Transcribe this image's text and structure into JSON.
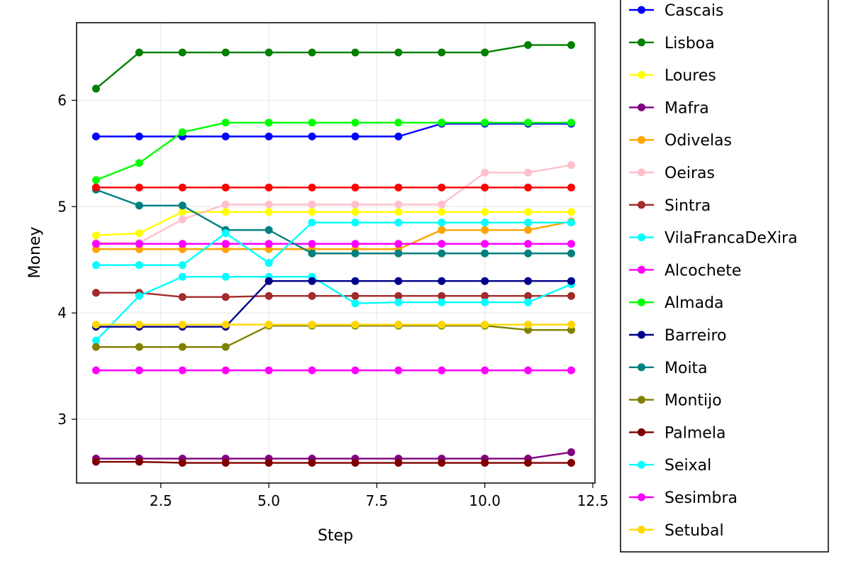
{
  "chart_data": {
    "type": "line",
    "title": "",
    "xlabel": "Step",
    "ylabel": "Money",
    "xlim": [
      0.55,
      12.55
    ],
    "ylim": [
      2.4,
      6.73
    ],
    "xticks": [
      2.5,
      5.0,
      7.5,
      10.0,
      12.5
    ],
    "xtick_labels": [
      "2.5",
      "5.0",
      "7.5",
      "10.0",
      "12.5"
    ],
    "yticks": [
      3,
      4,
      5,
      6
    ],
    "ytick_labels": [
      "3",
      "4",
      "5",
      "6"
    ],
    "grid": true,
    "legend_position": "outside-right",
    "x": [
      1,
      2,
      3,
      4,
      5,
      6,
      7,
      8,
      9,
      10,
      11,
      12
    ],
    "series": [
      {
        "name": "Cascais",
        "color": "#0000ff",
        "values": [
          5.66,
          5.66,
          5.66,
          5.66,
          5.66,
          5.66,
          5.66,
          5.66,
          5.78,
          5.78,
          5.78,
          5.78
        ]
      },
      {
        "name": "Lisboa",
        "color": "#008000",
        "values": [
          6.11,
          6.45,
          6.45,
          6.45,
          6.45,
          6.45,
          6.45,
          6.45,
          6.45,
          6.45,
          6.52,
          6.52
        ]
      },
      {
        "name": "Loures",
        "color": "#ffff00",
        "values": [
          4.73,
          4.75,
          4.95,
          4.95,
          4.95,
          4.95,
          4.95,
          4.95,
          4.95,
          4.95,
          4.95,
          4.95
        ]
      },
      {
        "name": "Mafra",
        "color": "#800080",
        "values": [
          2.63,
          2.63,
          2.63,
          2.63,
          2.63,
          2.63,
          2.63,
          2.63,
          2.63,
          2.63,
          2.63,
          2.69
        ]
      },
      {
        "name": "Odivelas",
        "color": "#ffa500",
        "values": [
          4.6,
          4.6,
          4.6,
          4.6,
          4.6,
          4.6,
          4.6,
          4.6,
          4.78,
          4.78,
          4.78,
          4.86
        ]
      },
      {
        "name": "Oeiras",
        "color": "#ffc0cb",
        "values": [
          4.66,
          4.66,
          4.88,
          5.02,
          5.02,
          5.02,
          5.02,
          5.02,
          5.02,
          5.32,
          5.32,
          5.39
        ]
      },
      {
        "name": "Sintra",
        "color": "#a52a2a",
        "values": [
          4.19,
          4.19,
          4.15,
          4.15,
          4.16,
          4.16,
          4.16,
          4.16,
          4.16,
          4.16,
          4.16,
          4.16
        ]
      },
      {
        "name": "VilaFrancaDeXira",
        "color": "#00ffff",
        "values": [
          3.74,
          4.16,
          4.34,
          4.34,
          4.34,
          4.34,
          4.09,
          4.1,
          4.1,
          4.1,
          4.1,
          4.27
        ]
      },
      {
        "name": "Alcochete",
        "color": "#ff00ff",
        "values": [
          4.65,
          4.65,
          4.65,
          4.65,
          4.65,
          4.65,
          4.65,
          4.65,
          4.65,
          4.65,
          4.65,
          4.65
        ]
      },
      {
        "name": "Almada",
        "color": "#00ff00",
        "values": [
          5.25,
          5.41,
          5.7,
          5.79,
          5.79,
          5.79,
          5.79,
          5.79,
          5.79,
          5.79,
          5.79,
          5.79
        ]
      },
      {
        "name": "Barreiro",
        "color": "#00008b",
        "values": [
          3.87,
          3.87,
          3.87,
          3.87,
          4.3,
          4.3,
          4.3,
          4.3,
          4.3,
          4.3,
          4.3,
          4.3
        ]
      },
      {
        "name": "Moita",
        "color": "#008080",
        "values": [
          5.16,
          5.01,
          5.01,
          4.78,
          4.78,
          4.56,
          4.56,
          4.56,
          4.56,
          4.56,
          4.56,
          4.56
        ]
      },
      {
        "name": "Montijo",
        "color": "#808000",
        "values": [
          3.68,
          3.68,
          3.68,
          3.68,
          3.88,
          3.88,
          3.88,
          3.88,
          3.88,
          3.88,
          3.84,
          3.84
        ]
      },
      {
        "name": "Palmela",
        "color": "#800000",
        "values": [
          2.6,
          2.6,
          2.59,
          2.59,
          2.59,
          2.59,
          2.59,
          2.59,
          2.59,
          2.59,
          2.59,
          2.59
        ]
      },
      {
        "name": "Seixal",
        "color": "#00ffff",
        "values": [
          4.45,
          4.45,
          4.45,
          4.75,
          4.47,
          4.85,
          4.85,
          4.85,
          4.85,
          4.85,
          4.85,
          4.85
        ]
      },
      {
        "name": "Sesimbra",
        "color": "#ff00ff",
        "values": [
          3.46,
          3.46,
          3.46,
          3.46,
          3.46,
          3.46,
          3.46,
          3.46,
          3.46,
          3.46,
          3.46,
          3.46
        ]
      },
      {
        "name": "Setubal",
        "color": "#ffd700",
        "values": [
          3.89,
          3.89,
          3.89,
          3.89,
          3.89,
          3.89,
          3.89,
          3.89,
          3.89,
          3.89,
          3.89,
          3.89
        ]
      },
      {
        "name": "",
        "color": "#ff0000",
        "values": [
          5.18,
          5.18,
          5.18,
          5.18,
          5.18,
          5.18,
          5.18,
          5.18,
          5.18,
          5.18,
          5.18,
          5.18
        ]
      }
    ]
  }
}
